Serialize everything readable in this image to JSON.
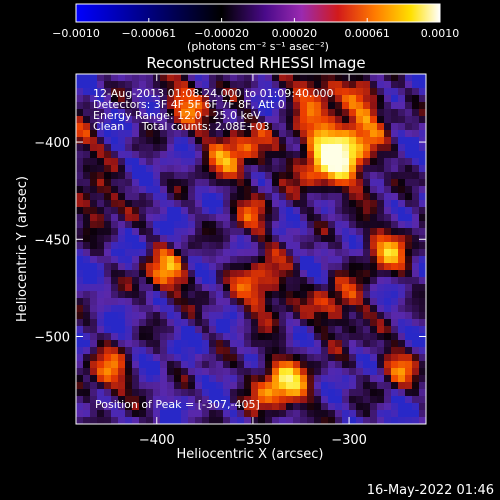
{
  "colorbar": {
    "ticks": [
      "−0.0010",
      "−0.00061",
      "−0.00020",
      "0.00020",
      "0.00061",
      "0.0010"
    ],
    "unit_label": "(photons cm⁻² s⁻¹ asec⁻²)",
    "range": [
      -0.001,
      0.001
    ],
    "colormap_stops": [
      "#0000ff",
      "#000000",
      "#4a0a8a",
      "#9a2ab0",
      "#d21a1a",
      "#ff7a00",
      "#ffe000",
      "#ffffff"
    ]
  },
  "chart_data": {
    "type": "heatmap",
    "title": "Reconstructed RHESSI Image",
    "xlabel": "Heliocentric X (arcsec)",
    "ylabel": "Heliocentric Y (arcsec)",
    "xlim": [
      -442,
      -260
    ],
    "ylim": [
      -545,
      -365
    ],
    "xticks": [
      -400,
      -350,
      -300
    ],
    "yticks": [
      -400,
      -450,
      -500
    ],
    "annotations": [
      "12-Aug-2013 01:08:24.000 to 01:09:40.000",
      "Detectors: 3F 4F 5F 6F 7F 8F, Att 0",
      "Energy Range: 12.0 - 25.0 keV",
      "Clean     Total counts: 2.08E+03"
    ],
    "peak_label": "Position of Peak = [-307,-405]",
    "peak": [
      -307,
      -405
    ]
  },
  "timestamp": "16-May-2022 01:46"
}
